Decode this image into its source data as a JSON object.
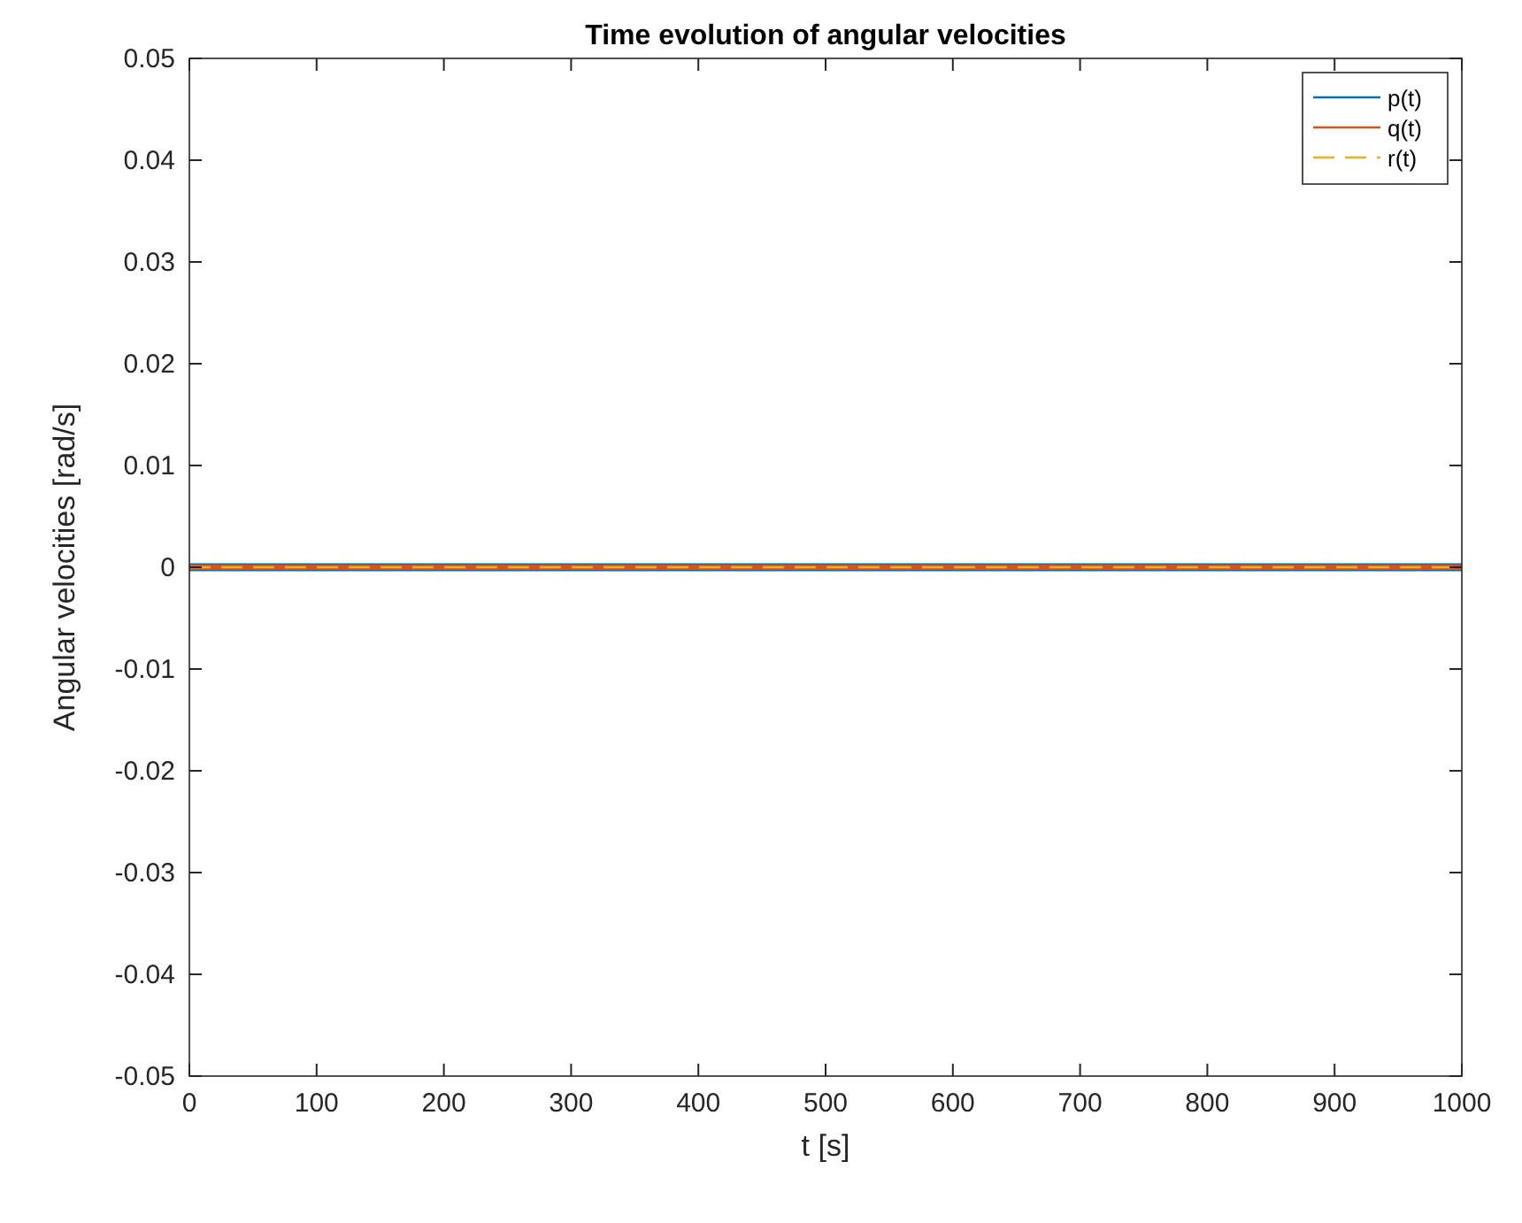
{
  "chart_data": {
    "type": "line",
    "title": "Time evolution of angular velocities",
    "xlabel": "t [s]",
    "ylabel": "Angular velocities [rad/s]",
    "x": [
      0,
      1000
    ],
    "series": [
      {
        "name": "p(t)",
        "color": "#0072bd",
        "values": [
          0,
          0
        ],
        "line_style": "solid"
      },
      {
        "name": "q(t)",
        "color": "#d95319",
        "values": [
          0,
          0
        ],
        "line_style": "solid"
      },
      {
        "name": "r(t)",
        "color": "#edb120",
        "values": [
          0,
          0
        ],
        "line_style": "dashed"
      }
    ],
    "xlim": [
      0,
      1000
    ],
    "xticks": [
      0,
      100,
      200,
      300,
      400,
      500,
      600,
      700,
      800,
      900,
      1000
    ],
    "ylim": [
      -0.05,
      0.05
    ],
    "yticks": [
      {
        "value": -0.05,
        "label": "-0.05"
      },
      {
        "value": -0.04,
        "label": "-0.04"
      },
      {
        "value": -0.03,
        "label": "-0.03"
      },
      {
        "value": -0.02,
        "label": "-0.02"
      },
      {
        "value": -0.01,
        "label": "-0.01"
      },
      0,
      {
        "value": 0.01,
        "label": "0.01"
      },
      {
        "value": 0.02,
        "label": "0.02"
      },
      {
        "value": 0.03,
        "label": "0.03"
      },
      {
        "value": 0.04,
        "label": "0.04"
      },
      {
        "value": 0.05,
        "label": "0.05"
      }
    ],
    "grid": false,
    "legend": "top right"
  }
}
